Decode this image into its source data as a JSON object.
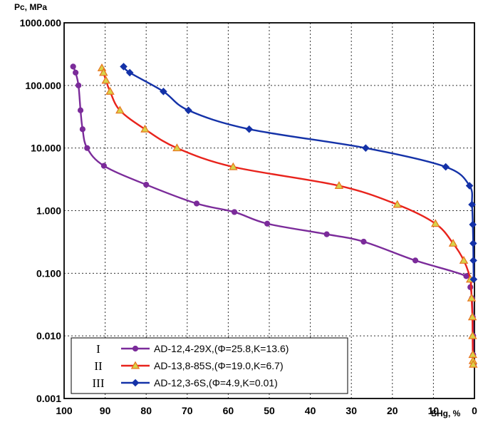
{
  "chart_data": {
    "type": "line",
    "ylabel": "Pc, MPa",
    "xlabel": "SHg, %",
    "y_scale": "log",
    "ylim": [
      0.001,
      1000
    ],
    "xlim": [
      100,
      0
    ],
    "x_reversed": true,
    "grid": "on (dotted)",
    "legend_position": "bottom-left",
    "y_tick_labels": [
      "0.001",
      "0.010",
      "0.100",
      "1.000",
      "10.000",
      "100.000",
      "1000.000"
    ],
    "x_tick_labels": [
      "100",
      "90",
      "80",
      "70",
      "60",
      "50",
      "40",
      "30",
      "20",
      "10",
      "0"
    ],
    "series": [
      {
        "name": "AD-12,4-29X,(Φ=25.8,K=13.6)",
        "roman": "I",
        "color": "#7b2b9a",
        "marker": "circle",
        "x": [
          97.8,
          97.2,
          96.5,
          96.0,
          95.5,
          94.4,
          90.3,
          80.0,
          67.7,
          58.5,
          50.5,
          36.0,
          27.0,
          14.4,
          2.0,
          1.0,
          0.6,
          0.4,
          0.3,
          0.3,
          0.2
        ],
        "y": [
          200,
          160,
          100,
          40,
          20,
          10,
          5.2,
          2.6,
          1.3,
          0.95,
          0.62,
          0.42,
          0.32,
          0.16,
          0.09,
          0.06,
          0.04,
          0.02,
          0.01,
          0.005,
          0.0035
        ]
      },
      {
        "name": "AD-13,8-85S,(Φ=19.0,K=6.7)",
        "roman": "II",
        "color": "#e8231c",
        "marker": "triangle",
        "x": [
          90.8,
          90.4,
          89.8,
          88.8,
          86.4,
          80.3,
          72.5,
          58.8,
          33.0,
          18.8,
          9.5,
          5.2,
          2.6,
          1.0,
          0.7,
          0.5,
          0.45,
          0.4,
          0.35,
          0.3
        ],
        "y": [
          190,
          160,
          120,
          80,
          40,
          20,
          10,
          5,
          2.5,
          1.25,
          0.62,
          0.3,
          0.16,
          0.08,
          0.04,
          0.02,
          0.01,
          0.005,
          0.004,
          0.0035
        ]
      },
      {
        "name": "AD-12,3-6S,(Φ=4.9,K=0.01)",
        "roman": "III",
        "color": "#1432a8",
        "marker": "diamond",
        "x": [
          85.5,
          84.0,
          75.8,
          69.7,
          54.9,
          26.5,
          7.0,
          1.2,
          0.6,
          0.4,
          0.3,
          0.25,
          0.2
        ],
        "y": [
          200,
          160,
          80,
          40,
          20,
          10,
          5,
          2.5,
          1.25,
          0.6,
          0.3,
          0.16,
          0.08
        ]
      }
    ]
  }
}
